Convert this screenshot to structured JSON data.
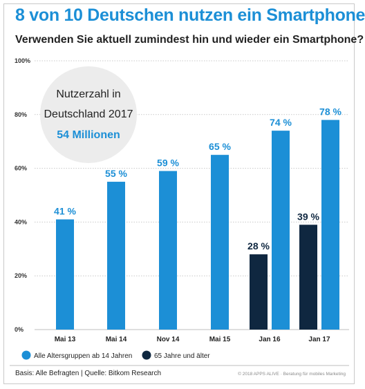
{
  "title": "8 von 10 Deutschen nutzen ein Smartphone",
  "subtitle": "Verwenden Sie aktuell zumindest hin und wieder ein Smartphone?",
  "callout": {
    "line1": "Nutzerzahl in",
    "line2": "Deutschland 2017",
    "value": "54 Millionen"
  },
  "colors": {
    "accent": "#1c8fd6",
    "dark": "#0f2740",
    "callout_bg": "#ececec"
  },
  "chart_data": {
    "type": "bar",
    "categories": [
      "Mai 13",
      "Mai 14",
      "Nov 14",
      "Mai 15",
      "Jan 16",
      "Jan 17"
    ],
    "series": [
      {
        "name": "Alle Altersgruppen ab 14 Jahren",
        "color": "#1c8fd6",
        "values": [
          41,
          55,
          59,
          65,
          74,
          78
        ],
        "labels": [
          "41 %",
          "55 %",
          "59 %",
          "65 %",
          "74 %",
          "78 %"
        ]
      },
      {
        "name": "65 Jahre und älter",
        "color": "#0f2740",
        "values": [
          null,
          null,
          null,
          null,
          28,
          39
        ],
        "labels": [
          "",
          "",
          "",
          "",
          "28 %",
          "39 %"
        ]
      }
    ],
    "ylim": [
      0,
      100
    ],
    "yticks": [
      0,
      20,
      40,
      60,
      80,
      100
    ],
    "ytick_labels": [
      "0%",
      "20%",
      "40%",
      "60%",
      "80%",
      "100%"
    ],
    "grid": true,
    "legend_position": "bottom-left"
  },
  "footer": {
    "source": "Basis: Alle Befragten | Quelle: Bitkom Research",
    "copyright": "© 2018 APPS ALIVE · Beratung für mobiles Marketing"
  }
}
